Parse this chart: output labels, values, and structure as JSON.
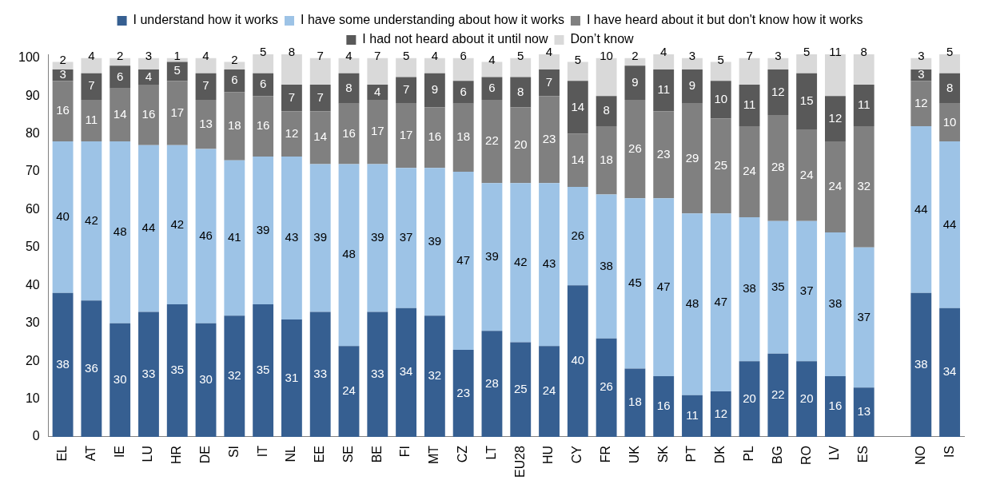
{
  "chart_data": {
    "type": "bar",
    "stacked": true,
    "grid": false,
    "legend": "top",
    "categories": [
      "EL",
      "AT",
      "IE",
      "LU",
      "HR",
      "DE",
      "SI",
      "IT",
      "NL",
      "EE",
      "SE",
      "BE",
      "FI",
      "MT",
      "CZ",
      "LT",
      "EU28",
      "HU",
      "CY",
      "FR",
      "UK",
      "SK",
      "PT",
      "DK",
      "PL",
      "BG",
      "RO",
      "LV",
      "ES",
      null,
      "NO",
      "IS"
    ],
    "ylim": [
      0,
      101
    ],
    "yticks": [
      0,
      10,
      20,
      30,
      40,
      50,
      60,
      70,
      80,
      90,
      100
    ],
    "series": [
      {
        "name": "I understand how it works",
        "color": "#365f91",
        "values": [
          38,
          36,
          30,
          33,
          35,
          30,
          32,
          35,
          31,
          33,
          24,
          33,
          34,
          32,
          23,
          28,
          25,
          24,
          40,
          26,
          18,
          16,
          11,
          12,
          20,
          22,
          20,
          16,
          13,
          null,
          38,
          34
        ],
        "value_labels": [
          "38",
          "36",
          "30",
          "33",
          "35",
          "30",
          "32",
          "35",
          "31",
          "33",
          "24",
          "33",
          "34",
          "32",
          "23",
          "28",
          "25",
          "24",
          "40",
          "26",
          "18",
          "16",
          "11",
          "12",
          "20",
          "22",
          "20",
          "16",
          "13",
          null,
          "38",
          "34"
        ]
      },
      {
        "name": "I have some understanding about how it works",
        "color": "#9dc3e6",
        "values": [
          40,
          42,
          48,
          44,
          42,
          46,
          41,
          39,
          43,
          39,
          48,
          39,
          37,
          39,
          47,
          39,
          42,
          43,
          26,
          38,
          45,
          47,
          48,
          47,
          38,
          35,
          37,
          38,
          37,
          null,
          44,
          44
        ],
        "value_labels": [
          "40",
          "42",
          "48",
          "44",
          "42",
          "46",
          "41",
          "39",
          "43",
          "39",
          "48",
          "39",
          "37",
          "39",
          "47",
          "39",
          "42",
          "43",
          "26",
          "38",
          "45",
          "47",
          "48",
          "47",
          "38",
          "35",
          "37",
          "38",
          "37",
          null,
          "44",
          "44"
        ]
      },
      {
        "name": "I have heard about it but don't know how it works",
        "color": "#808080",
        "values": [
          16,
          11,
          14,
          16,
          17,
          13,
          18,
          16,
          12,
          14,
          16,
          17,
          17,
          16,
          18,
          22,
          20,
          23,
          14,
          18,
          26,
          23,
          29,
          25,
          24,
          28,
          24,
          24,
          32,
          null,
          12,
          10
        ],
        "value_labels": [
          "16",
          "11",
          "14",
          "16",
          "17",
          "13",
          "18",
          "16",
          "12",
          "14",
          "16",
          "17",
          "17",
          "16",
          "18",
          "22",
          "20",
          "23",
          "14",
          "18",
          "26",
          "23",
          "29",
          "25",
          "24",
          "28",
          "24",
          "24",
          "32",
          null,
          "12",
          "10"
        ]
      },
      {
        "name": "I had not heard about it until now",
        "color": "#595959",
        "values": [
          3,
          7,
          6,
          4,
          5,
          7,
          6,
          6,
          7,
          7,
          8,
          4,
          7,
          9,
          6,
          6,
          8,
          7,
          14,
          8,
          9,
          11,
          9,
          10,
          11,
          12,
          15,
          12,
          11,
          null,
          3,
          8
        ],
        "value_labels": [
          "3",
          "7",
          "6",
          "4",
          "5",
          "7",
          "6",
          "6",
          "7",
          "7",
          "8",
          "4",
          "7",
          "9",
          "6",
          "6",
          "8",
          "7",
          "14",
          "8",
          "9",
          "11",
          "9",
          "10",
          "11",
          "12",
          "15",
          "12",
          "11",
          null,
          "3",
          "8"
        ]
      },
      {
        "name": "Don’t know",
        "color": "#d9d9d9",
        "values": [
          2,
          4,
          2,
          3,
          1,
          4,
          2,
          5,
          8,
          7,
          4,
          7,
          5,
          4,
          6,
          4,
          5,
          4,
          5,
          10,
          2,
          4,
          3,
          5,
          7,
          3,
          5,
          11,
          8,
          null,
          3,
          5
        ],
        "value_labels": [
          "2",
          "4",
          "2",
          "3",
          "1",
          "4",
          "2",
          "5",
          "8",
          "7",
          "4",
          "7",
          "5",
          "4",
          "6",
          "4",
          "5",
          "4",
          "5",
          "10",
          "2",
          "4",
          "3",
          "5",
          "7",
          "3",
          "5",
          "11",
          "8",
          null,
          "3",
          "5"
        ]
      }
    ]
  }
}
